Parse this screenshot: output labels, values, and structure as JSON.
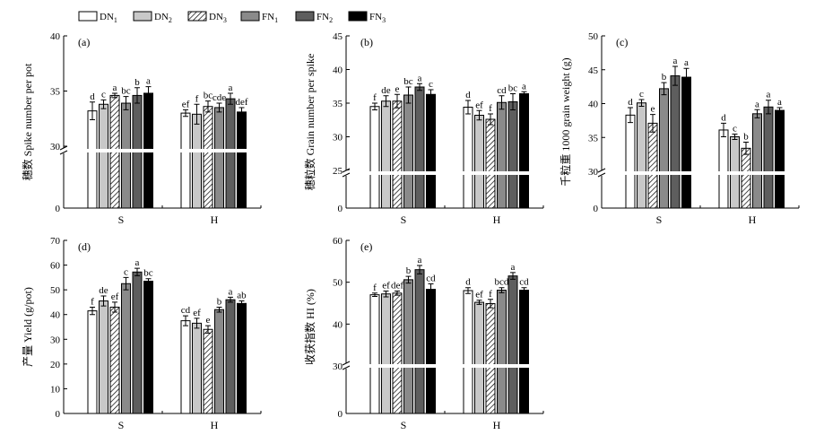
{
  "legend": {
    "items": [
      {
        "label": "DN1",
        "style": "white"
      },
      {
        "label": "DN2",
        "style": "lightgray"
      },
      {
        "label": "DN3",
        "style": "hatched"
      },
      {
        "label": "FN1",
        "style": "gray"
      },
      {
        "label": "FN2",
        "style": "darkgray"
      },
      {
        "label": "FN3",
        "style": "black"
      }
    ]
  },
  "colors": {
    "white": "#ffffff",
    "lightgray": "#c8c8c8",
    "gray": "#8a8a8a",
    "darkgray": "#5e5e5e",
    "black": "#000000"
  },
  "chart_data": [
    {
      "type": "bar",
      "panel": "(a)",
      "ylabel": "穗数 Spike number per pot",
      "categories": [
        "S",
        "H"
      ],
      "axis_break": true,
      "ticks_lower": [
        0
      ],
      "ticks_upper": [
        30,
        35,
        40
      ],
      "ylim_upper": [
        30,
        40
      ],
      "series": [
        {
          "name": "DN1",
          "values": [
            33.2,
            33.0
          ],
          "errors": [
            0.8,
            0.3
          ],
          "sig": [
            "d",
            "ef"
          ]
        },
        {
          "name": "DN2",
          "values": [
            33.8,
            32.9
          ],
          "errors": [
            0.4,
            0.9
          ],
          "sig": [
            "c",
            "f"
          ]
        },
        {
          "name": "DN3",
          "values": [
            34.6,
            33.6
          ],
          "errors": [
            0.2,
            0.5
          ],
          "sig": [
            "a",
            "bc"
          ]
        },
        {
          "name": "FN1",
          "values": [
            33.9,
            33.5
          ],
          "errors": [
            0.6,
            0.4
          ],
          "sig": [
            "bc",
            "cde"
          ]
        },
        {
          "name": "FN2",
          "values": [
            34.6,
            34.3
          ],
          "errors": [
            0.7,
            0.5
          ],
          "sig": [
            "b",
            "a"
          ]
        },
        {
          "name": "FN3",
          "values": [
            34.8,
            33.1
          ],
          "errors": [
            0.6,
            0.4
          ],
          "sig": [
            "a",
            "def"
          ]
        }
      ]
    },
    {
      "type": "bar",
      "panel": "(b)",
      "ylabel": "穗粒数 Grain number per spike",
      "categories": [
        "S",
        "H"
      ],
      "axis_break": true,
      "ticks_lower": [
        0
      ],
      "ticks_upper": [
        25,
        30,
        35,
        40,
        45
      ],
      "ylim_upper": [
        25,
        45
      ],
      "series": [
        {
          "name": "DN1",
          "values": [
            34.5,
            34.4
          ],
          "errors": [
            0.5,
            1.0
          ],
          "sig": [
            "f",
            "d"
          ]
        },
        {
          "name": "DN2",
          "values": [
            35.3,
            33.2
          ],
          "errors": [
            0.8,
            0.7
          ],
          "sig": [
            "de",
            "ef"
          ]
        },
        {
          "name": "DN3",
          "values": [
            35.3,
            32.6
          ],
          "errors": [
            1.0,
            0.8
          ],
          "sig": [
            "e",
            "f"
          ]
        },
        {
          "name": "FN1",
          "values": [
            36.2,
            35.1
          ],
          "errors": [
            1.2,
            1.0
          ],
          "sig": [
            "bc",
            "cd"
          ]
        },
        {
          "name": "FN2",
          "values": [
            37.4,
            35.2
          ],
          "errors": [
            0.5,
            1.2
          ],
          "sig": [
            "a",
            "bc"
          ]
        },
        {
          "name": "FN3",
          "values": [
            36.3,
            36.4
          ],
          "errors": [
            0.7,
            0.3
          ],
          "sig": [
            "c",
            "a"
          ]
        }
      ]
    },
    {
      "type": "bar",
      "panel": "(c)",
      "ylabel": "千粒重 1000 grain weight (g)",
      "categories": [
        "S",
        "H"
      ],
      "axis_break": true,
      "ticks_lower": [
        0
      ],
      "ticks_upper": [
        30,
        35,
        40,
        45,
        50
      ],
      "ylim_upper": [
        30,
        50
      ],
      "series": [
        {
          "name": "DN1",
          "values": [
            38.3,
            36.1
          ],
          "errors": [
            1.1,
            1.0
          ],
          "sig": [
            "d",
            "d"
          ]
        },
        {
          "name": "DN2",
          "values": [
            40.1,
            35.1
          ],
          "errors": [
            0.5,
            0.4
          ],
          "sig": [
            "c",
            "c"
          ]
        },
        {
          "name": "DN3",
          "values": [
            37.1,
            33.4
          ],
          "errors": [
            1.3,
            0.9
          ],
          "sig": [
            "e",
            "b"
          ]
        },
        {
          "name": "FN1",
          "values": [
            42.2,
            38.5
          ],
          "errors": [
            0.9,
            0.6
          ],
          "sig": [
            "b",
            "a"
          ]
        },
        {
          "name": "FN2",
          "values": [
            44.1,
            39.5
          ],
          "errors": [
            1.4,
            1.0
          ],
          "sig": [
            "a",
            "a"
          ]
        },
        {
          "name": "FN3",
          "values": [
            43.9,
            39.0
          ],
          "errors": [
            1.3,
            0.4
          ],
          "sig": [
            "a",
            "a"
          ]
        }
      ]
    },
    {
      "type": "bar",
      "panel": "(d)",
      "ylabel": "产量 Yield (g/pot)",
      "categories": [
        "S",
        "H"
      ],
      "axis_break": false,
      "ticks": [
        0,
        10,
        20,
        30,
        40,
        50,
        60,
        70
      ],
      "ylim": [
        0,
        70
      ],
      "series": [
        {
          "name": "DN1",
          "values": [
            41.5,
            37.5
          ],
          "errors": [
            1.5,
            2.0
          ],
          "sig": [
            "f",
            "cd"
          ]
        },
        {
          "name": "DN2",
          "values": [
            45.5,
            36.5
          ],
          "errors": [
            2.0,
            2.0
          ],
          "sig": [
            "de",
            "ef"
          ]
        },
        {
          "name": "DN3",
          "values": [
            43.0,
            34.0
          ],
          "errors": [
            2.0,
            1.5
          ],
          "sig": [
            "ef",
            "e"
          ]
        },
        {
          "name": "FN1",
          "values": [
            52.5,
            42.0
          ],
          "errors": [
            2.5,
            1.0
          ],
          "sig": [
            "c",
            "b"
          ]
        },
        {
          "name": "FN2",
          "values": [
            57.2,
            46.0
          ],
          "errors": [
            1.5,
            1.0
          ],
          "sig": [
            "a",
            "a"
          ]
        },
        {
          "name": "FN3",
          "values": [
            53.5,
            44.5
          ],
          "errors": [
            1.0,
            1.0
          ],
          "sig": [
            "bc",
            "ab"
          ]
        }
      ]
    },
    {
      "type": "bar",
      "panel": "(e)",
      "ylabel": "收获指数 HI (%)",
      "categories": [
        "S",
        "H"
      ],
      "axis_break": true,
      "ticks_lower": [
        0
      ],
      "ticks_upper": [
        30,
        40,
        50,
        60
      ],
      "ylim_upper": [
        30,
        60
      ],
      "series": [
        {
          "name": "DN1",
          "values": [
            47.0,
            48.0
          ],
          "errors": [
            0.4,
            0.7
          ],
          "sig": [
            "f",
            "d"
          ]
        },
        {
          "name": "DN2",
          "values": [
            47.2,
            45.2
          ],
          "errors": [
            0.7,
            0.5
          ],
          "sig": [
            "ef",
            "ef"
          ]
        },
        {
          "name": "DN3",
          "values": [
            47.4,
            44.9
          ],
          "errors": [
            0.5,
            1.0
          ],
          "sig": [
            "def",
            "f"
          ]
        },
        {
          "name": "FN1",
          "values": [
            50.6,
            48.1
          ],
          "errors": [
            0.8,
            0.6
          ],
          "sig": [
            "b",
            "bcd"
          ]
        },
        {
          "name": "FN2",
          "values": [
            53.0,
            51.5
          ],
          "errors": [
            1.0,
            0.8
          ],
          "sig": [
            "a",
            "a"
          ]
        },
        {
          "name": "FN3",
          "values": [
            48.3,
            48.1
          ],
          "errors": [
            1.3,
            0.6
          ],
          "sig": [
            "cd",
            "cd"
          ]
        }
      ]
    }
  ]
}
